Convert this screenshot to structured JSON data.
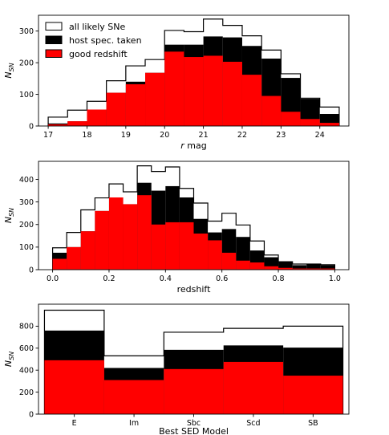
{
  "colors": {
    "all_likely": "#ffffff",
    "host_spec": "#000000",
    "good_redshift": "#ff0000",
    "axes": "#000000"
  },
  "legend": {
    "placement": "top-left",
    "entries": [
      {
        "key": "all_likely",
        "label": "all likely SNe"
      },
      {
        "key": "host_spec",
        "label": "host spec. taken"
      },
      {
        "key": "good_redshift",
        "label": "good redshift"
      }
    ]
  },
  "chart_data": [
    {
      "type": "histogram",
      "xlabel": "r mag",
      "ylabel": "N_SN",
      "xlim": [
        16.75,
        24.75
      ],
      "ylim": [
        0,
        350
      ],
      "xticks": [
        17,
        18,
        19,
        20,
        21,
        22,
        23,
        24
      ],
      "yticks": [
        0,
        100,
        200,
        300
      ],
      "bin_edges": [
        17,
        17.5,
        18,
        18.5,
        19,
        19.5,
        20,
        20.5,
        21,
        21.5,
        22,
        22.5,
        23,
        23.5,
        24,
        24.5
      ],
      "series": [
        {
          "key": "all_likely",
          "name": "all likely SNe",
          "values": [
            28,
            50,
            78,
            143,
            190,
            210,
            302,
            298,
            338,
            318,
            285,
            240,
            165,
            88,
            60
          ]
        },
        {
          "key": "host_spec",
          "name": "host spec. taken",
          "values": [
            8,
            15,
            52,
            105,
            140,
            168,
            257,
            257,
            283,
            280,
            253,
            213,
            152,
            86,
            38
          ]
        },
        {
          "key": "good_redshift",
          "name": "good redshift",
          "values": [
            5,
            15,
            52,
            105,
            132,
            168,
            235,
            218,
            222,
            203,
            162,
            95,
            45,
            22,
            10
          ]
        }
      ]
    },
    {
      "type": "histogram",
      "xlabel": "redshift",
      "ylabel": "N_SN",
      "xlim": [
        -0.05,
        1.05
      ],
      "ylim": [
        0,
        480
      ],
      "xticks": [
        0.0,
        0.2,
        0.4,
        0.6,
        0.8,
        1.0
      ],
      "yticks": [
        0,
        100,
        200,
        300,
        400
      ],
      "bin_edges": [
        0,
        0.05,
        0.1,
        0.15,
        0.2,
        0.25,
        0.3,
        0.35,
        0.4,
        0.45,
        0.5,
        0.55,
        0.6,
        0.65,
        0.7,
        0.75,
        0.8,
        0.85,
        0.9,
        0.95,
        1.0
      ],
      "series": [
        {
          "key": "all_likely",
          "name": "all likely SNe",
          "values": [
            97,
            165,
            265,
            318,
            380,
            345,
            460,
            435,
            455,
            360,
            295,
            215,
            250,
            198,
            127,
            65,
            35,
            25,
            25,
            22
          ]
        },
        {
          "key": "host_spec",
          "name": "host spec. taken",
          "values": [
            75,
            100,
            170,
            260,
            320,
            290,
            385,
            350,
            370,
            320,
            225,
            165,
            180,
            145,
            85,
            55,
            35,
            20,
            25,
            20
          ]
        },
        {
          "key": "good_redshift",
          "name": "good redshift",
          "values": [
            48,
            100,
            170,
            260,
            320,
            290,
            330,
            200,
            210,
            210,
            160,
            130,
            75,
            40,
            32,
            15,
            8,
            5,
            5,
            5
          ]
        }
      ]
    },
    {
      "type": "bar",
      "xlabel": "Best SED Model",
      "ylabel": "N_SN",
      "ylim": [
        0,
        1000
      ],
      "yticks": [
        0,
        200,
        400,
        600,
        800
      ],
      "categories": [
        "E",
        "Im",
        "Sbc",
        "Scd",
        "SB"
      ],
      "series": [
        {
          "key": "all_likely",
          "name": "all likely SNe",
          "values": [
            945,
            530,
            745,
            780,
            800
          ]
        },
        {
          "key": "host_spec",
          "name": "host spec. taken",
          "values": [
            760,
            420,
            585,
            625,
            605
          ]
        },
        {
          "key": "good_redshift",
          "name": "good redshift",
          "values": [
            490,
            310,
            410,
            475,
            350
          ]
        }
      ]
    }
  ]
}
